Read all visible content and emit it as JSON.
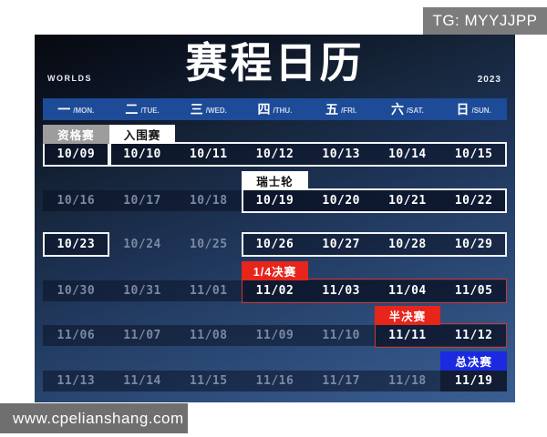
{
  "badges": {
    "tg": "TG: MYYJJPP",
    "watermark": "www.cpelianshang.com"
  },
  "masthead": {
    "title": "赛程日历",
    "left_label": "WORLDS",
    "right_label": "2023"
  },
  "calendar": {
    "day_headers": [
      {
        "cn": "一",
        "en": "/MON."
      },
      {
        "cn": "二",
        "en": "/TUE."
      },
      {
        "cn": "三",
        "en": "/WED."
      },
      {
        "cn": "四",
        "en": "/THU."
      },
      {
        "cn": "五",
        "en": "/FRI."
      },
      {
        "cn": "六",
        "en": "/SAT."
      },
      {
        "cn": "日",
        "en": "/SUN."
      }
    ],
    "weeks": [
      {
        "tags": [
          {
            "col": 0,
            "span": 1,
            "label": "资格赛",
            "variant": "gray"
          },
          {
            "col": 1,
            "span": 1,
            "label": "入围赛",
            "variant": "white"
          }
        ],
        "dates": [
          "10/09",
          "10/10",
          "10/11",
          "10/12",
          "10/13",
          "10/14",
          "10/15"
        ],
        "active": [
          1,
          1,
          1,
          1,
          1,
          1,
          1
        ],
        "band": false,
        "boxes": [
          {
            "col": 0,
            "span": 1,
            "variant": "white"
          },
          {
            "col": 1,
            "span": 6,
            "variant": "white"
          }
        ],
        "highlight_cols": []
      },
      {
        "tags": [
          {
            "col": 3,
            "span": 1,
            "label": "瑞士轮",
            "variant": "white"
          }
        ],
        "dates": [
          "10/16",
          "10/17",
          "10/18",
          "10/19",
          "10/20",
          "10/21",
          "10/22"
        ],
        "active": [
          0,
          0,
          0,
          1,
          1,
          1,
          1
        ],
        "band": true,
        "boxes": [
          {
            "col": 3,
            "span": 4,
            "variant": "white"
          }
        ],
        "highlight_cols": []
      },
      {
        "tags": [],
        "dates": [
          "10/23",
          "10/24",
          "10/25",
          "10/26",
          "10/27",
          "10/28",
          "10/29"
        ],
        "active": [
          1,
          0,
          0,
          1,
          1,
          1,
          1
        ],
        "band": false,
        "boxes": [
          {
            "col": 0,
            "span": 1,
            "variant": "white"
          },
          {
            "col": 3,
            "span": 4,
            "variant": "white"
          }
        ],
        "highlight_cols": []
      },
      {
        "tags": [
          {
            "col": 3,
            "span": 1,
            "label": "1/4决赛",
            "variant": "red"
          }
        ],
        "dates": [
          "10/30",
          "10/31",
          "11/01",
          "11/02",
          "11/03",
          "11/04",
          "11/05"
        ],
        "active": [
          0,
          0,
          0,
          1,
          1,
          1,
          1
        ],
        "band": true,
        "boxes": [
          {
            "col": 3,
            "span": 4,
            "variant": "red"
          }
        ],
        "highlight_cols": []
      },
      {
        "tags": [
          {
            "col": 5,
            "span": 1,
            "label": "半决赛",
            "variant": "red"
          }
        ],
        "dates": [
          "11/06",
          "11/07",
          "11/08",
          "11/09",
          "11/10",
          "11/11",
          "11/12"
        ],
        "active": [
          0,
          0,
          0,
          0,
          0,
          1,
          1
        ],
        "band": true,
        "boxes": [
          {
            "col": 5,
            "span": 2,
            "variant": "red"
          }
        ],
        "highlight_cols": []
      },
      {
        "tags": [
          {
            "col": 6,
            "span": 1,
            "label": "总决赛",
            "variant": "blue"
          }
        ],
        "dates": [
          "11/13",
          "11/14",
          "11/15",
          "11/16",
          "11/17",
          "11/18",
          "11/19"
        ],
        "active": [
          0,
          0,
          0,
          0,
          0,
          0,
          1
        ],
        "band": true,
        "boxes": [],
        "highlight_cols": [
          6
        ]
      }
    ]
  },
  "colors": {
    "header_bar_blue": "#1d4b97",
    "tag_gray": "#9d9d9d",
    "tag_red": "#e8251b",
    "tag_blue": "#1b2ae0",
    "box_red_border": "#c93830",
    "active_date_text": "#ffffff",
    "dim_date_text": "#7b89a4"
  }
}
